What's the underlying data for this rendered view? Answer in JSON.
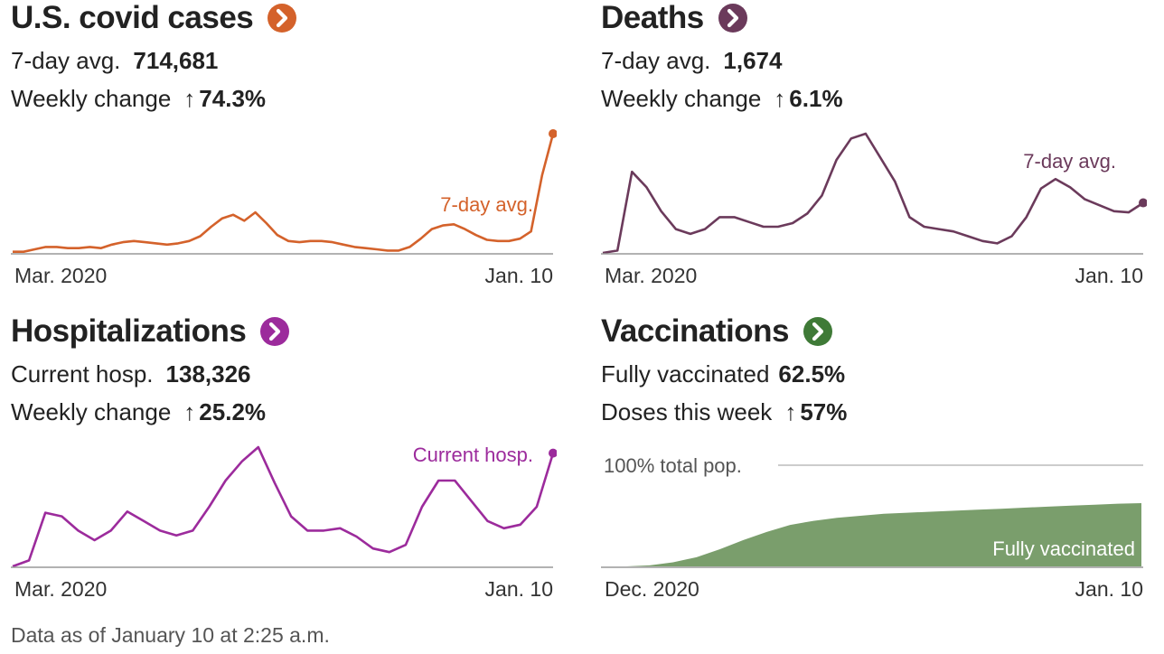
{
  "colors": {
    "cases": "#d4622b",
    "deaths": "#6b3a5b",
    "hospitalizations": "#9c2b9c",
    "vaccinations": "#7a9e6c",
    "vaccinations_button": "#3f7a37",
    "axis": "#888888",
    "text": "#222222"
  },
  "footnote": "Data as of January 10 at 2:25 a.m.",
  "panels": {
    "cases": {
      "title": "U.S. covid cases",
      "stat1_label": "7-day avg.",
      "stat1_value": "714,681",
      "stat2_label": "Weekly change",
      "stat2_value": "74.3%",
      "button_icon": "chevron-right-icon"
    },
    "deaths": {
      "title": "Deaths",
      "stat1_label": "7-day avg.",
      "stat1_value": "1,674",
      "stat2_label": "Weekly change",
      "stat2_value": "6.1%",
      "button_icon": "chevron-right-icon"
    },
    "hospitalizations": {
      "title": "Hospitalizations",
      "stat1_label": "Current hosp.",
      "stat1_value": "138,326",
      "stat2_label": "Weekly change",
      "stat2_value": "25.2%",
      "button_icon": "chevron-right-icon"
    },
    "vaccinations": {
      "title": "Vaccinations",
      "stat1_label": "Fully vaccinated",
      "stat1_value": "62.5%",
      "stat2_label": "Doses this week",
      "stat2_value": "57%",
      "button_icon": "chevron-right-icon"
    }
  },
  "chart_data": [
    {
      "id": "cases",
      "type": "line",
      "x_start": "Mar. 2020",
      "x_end": "Jan. 10",
      "series_label": "7-day avg.",
      "ylim": [
        0,
        1
      ],
      "values": [
        0.01,
        0.01,
        0.03,
        0.05,
        0.05,
        0.04,
        0.04,
        0.05,
        0.04,
        0.07,
        0.09,
        0.1,
        0.09,
        0.08,
        0.07,
        0.08,
        0.1,
        0.14,
        0.22,
        0.29,
        0.32,
        0.27,
        0.34,
        0.25,
        0.15,
        0.1,
        0.09,
        0.1,
        0.1,
        0.09,
        0.07,
        0.05,
        0.04,
        0.03,
        0.02,
        0.02,
        0.05,
        0.12,
        0.2,
        0.23,
        0.24,
        0.2,
        0.15,
        0.11,
        0.1,
        0.1,
        0.12,
        0.18,
        0.65,
        1.0
      ]
    },
    {
      "id": "deaths",
      "type": "line",
      "x_start": "Mar. 2020",
      "x_end": "Jan. 10",
      "series_label": "7-day avg.",
      "ylim": [
        0,
        1
      ],
      "values": [
        0.0,
        0.02,
        0.68,
        0.55,
        0.35,
        0.2,
        0.16,
        0.2,
        0.3,
        0.3,
        0.26,
        0.22,
        0.22,
        0.25,
        0.33,
        0.48,
        0.78,
        0.96,
        1.0,
        0.8,
        0.6,
        0.3,
        0.22,
        0.2,
        0.18,
        0.14,
        0.1,
        0.08,
        0.14,
        0.3,
        0.54,
        0.62,
        0.55,
        0.45,
        0.4,
        0.35,
        0.34,
        0.42
      ]
    },
    {
      "id": "hospitalizations",
      "type": "line",
      "x_start": "Mar. 2020",
      "x_end": "Jan. 10",
      "series_label": "Current hosp.",
      "ylim": [
        0,
        1
      ],
      "values": [
        0.0,
        0.05,
        0.45,
        0.42,
        0.3,
        0.22,
        0.3,
        0.46,
        0.38,
        0.3,
        0.26,
        0.3,
        0.5,
        0.72,
        0.88,
        1.0,
        0.7,
        0.42,
        0.3,
        0.3,
        0.32,
        0.25,
        0.15,
        0.12,
        0.18,
        0.5,
        0.72,
        0.72,
        0.55,
        0.38,
        0.32,
        0.35,
        0.5,
        0.95
      ]
    },
    {
      "id": "vaccinations",
      "type": "area",
      "x_start": "Dec. 2020",
      "x_end": "Jan. 10",
      "reference_label": "100% total pop.",
      "series_label": "Fully vaccinated",
      "ylim": [
        0,
        100
      ],
      "values": [
        0,
        0,
        1,
        4,
        9,
        17,
        26,
        34,
        41,
        45,
        48,
        50,
        52,
        53,
        54,
        55,
        56,
        57,
        58,
        59,
        60,
        61,
        62,
        62.5
      ]
    }
  ]
}
